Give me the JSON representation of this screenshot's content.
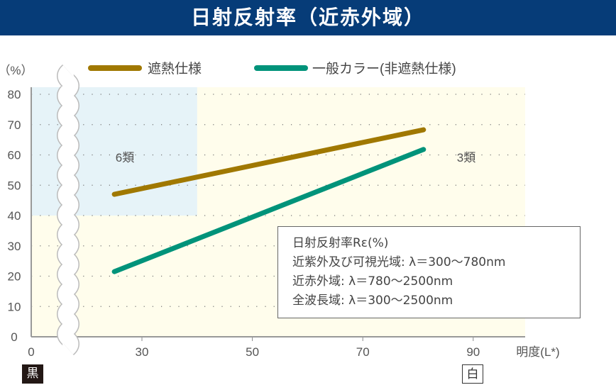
{
  "title": "日射反射率（近赤外域）",
  "colors": {
    "heat": "#a07800",
    "normal": "#00937a",
    "blue_zone": "#e6f3f8",
    "yellow_zone": "#fffdec"
  },
  "chart_data": {
    "type": "line",
    "title": "日射反射率（近赤外域）",
    "ylabel": "（%）",
    "xlabel": "明度(L*)",
    "ylim": [
      0,
      80
    ],
    "xlim": [
      0,
      100
    ],
    "x_axis_break": true,
    "yticks": [
      "0",
      "10",
      "20",
      "30",
      "40",
      "50",
      "60",
      "70",
      "80"
    ],
    "xticks": [
      {
        "value": 0,
        "label": "0"
      },
      {
        "value": 30,
        "label": "30"
      },
      {
        "value": 50,
        "label": "50"
      },
      {
        "value": 70,
        "label": "70"
      },
      {
        "value": 90,
        "label": "90"
      }
    ],
    "grid": true,
    "legend_placement": "top",
    "series": [
      {
        "name": "遮熱仕様",
        "x": [
          25,
          81
        ],
        "y": [
          47,
          68.3
        ]
      },
      {
        "name": "一般カラー(非遮熱仕様)",
        "x": [
          25,
          81
        ],
        "y": [
          21.5,
          61.8
        ]
      }
    ],
    "regions": [
      {
        "label": "6類",
        "x": [
          0,
          40
        ],
        "y": [
          40,
          80
        ]
      },
      {
        "label": "3類",
        "x": [
          40,
          100
        ],
        "y": [
          0,
          80
        ]
      }
    ],
    "annotation": {
      "lines": [
        "日射反射率Rε(%)",
        "近紫外及び可視光域: λ＝300〜780nm",
        "近赤外域: λ＝780〜2500nm",
        "全波長域: λ＝300〜2500nm"
      ]
    },
    "end_labels": {
      "black": "黒",
      "white": "白"
    }
  }
}
